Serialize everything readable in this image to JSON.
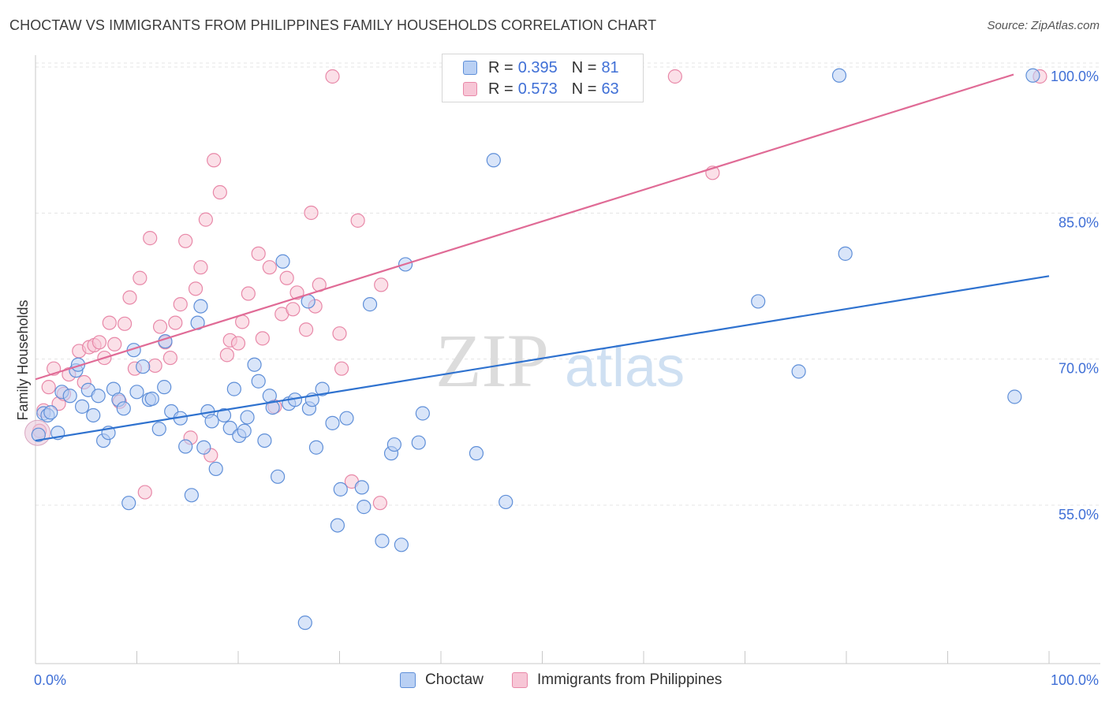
{
  "header": {
    "title": "CHOCTAW VS IMMIGRANTS FROM PHILIPPINES FAMILY HOUSEHOLDS CORRELATION CHART",
    "source": "Source: ZipAtlas.com"
  },
  "colors": {
    "choctaw_fill": "#b9d0f4",
    "choctaw_stroke": "#5f8fd8",
    "choctaw_line": "#2f72cf",
    "phil_fill": "#f7c6d6",
    "phil_stroke": "#e888a8",
    "phil_line": "#e06b96",
    "axis_label": "#3f6fd6",
    "grid": "#e4e4e4"
  },
  "legend": {
    "rows": [
      {
        "r_label": "R =",
        "r_value": "0.395",
        "n_label": "N =",
        "n_value": "81"
      },
      {
        "r_label": "R =",
        "r_value": "0.573",
        "n_label": "N =",
        "n_value": "63"
      }
    ],
    "bottom": [
      "Choctaw",
      "Immigrants from Philippines"
    ]
  },
  "watermark": {
    "zip": "ZIP",
    "atlas": "atlas"
  },
  "chart_data": {
    "type": "scatter",
    "title": "CHOCTAW VS IMMIGRANTS FROM PHILIPPINES FAMILY HOUSEHOLDS CORRELATION CHART",
    "xlabel": "",
    "ylabel": "Family Households",
    "xlim": [
      0,
      100
    ],
    "ylim": [
      41.5,
      102.0
    ],
    "x_tick_labels": [
      "0.0%",
      "100.0%"
    ],
    "y_ticks": [
      55.0,
      70.0,
      85.0,
      100.0
    ],
    "y_tick_labels": [
      "55.0%",
      "70.0%",
      "85.0%",
      "100.0%"
    ],
    "series": [
      {
        "name": "Choctaw",
        "r": 0.395,
        "n": 81,
        "trend": {
          "x": [
            0,
            100
          ],
          "y": [
            62.6,
            79.5
          ]
        },
        "points": [
          {
            "x": 0.8,
            "y": 65.4
          },
          {
            "x": 1.2,
            "y": 65.2
          },
          {
            "x": 1.5,
            "y": 65.5
          },
          {
            "x": 2.2,
            "y": 63.4
          },
          {
            "x": 2.6,
            "y": 67.6
          },
          {
            "x": 3.4,
            "y": 67.2
          },
          {
            "x": 4.0,
            "y": 69.8
          },
          {
            "x": 4.2,
            "y": 70.4
          },
          {
            "x": 4.6,
            "y": 66.1
          },
          {
            "x": 5.2,
            "y": 67.8
          },
          {
            "x": 5.7,
            "y": 65.2
          },
          {
            "x": 6.2,
            "y": 67.2
          },
          {
            "x": 6.7,
            "y": 62.6
          },
          {
            "x": 7.2,
            "y": 63.4
          },
          {
            "x": 7.7,
            "y": 67.9
          },
          {
            "x": 8.2,
            "y": 66.8
          },
          {
            "x": 8.7,
            "y": 65.9
          },
          {
            "x": 9.2,
            "y": 56.2
          },
          {
            "x": 9.7,
            "y": 71.9
          },
          {
            "x": 10.0,
            "y": 67.6
          },
          {
            "x": 10.6,
            "y": 70.2
          },
          {
            "x": 11.2,
            "y": 66.8
          },
          {
            "x": 11.5,
            "y": 66.9
          },
          {
            "x": 12.2,
            "y": 63.8
          },
          {
            "x": 12.7,
            "y": 68.1
          },
          {
            "x": 12.8,
            "y": 72.8
          },
          {
            "x": 13.4,
            "y": 65.6
          },
          {
            "x": 14.3,
            "y": 64.9
          },
          {
            "x": 14.8,
            "y": 62.0
          },
          {
            "x": 15.4,
            "y": 57.0
          },
          {
            "x": 16.0,
            "y": 74.7
          },
          {
            "x": 16.3,
            "y": 76.4
          },
          {
            "x": 16.6,
            "y": 61.9
          },
          {
            "x": 17.0,
            "y": 65.6
          },
          {
            "x": 17.4,
            "y": 64.6
          },
          {
            "x": 17.8,
            "y": 59.7
          },
          {
            "x": 18.6,
            "y": 65.2
          },
          {
            "x": 19.2,
            "y": 63.9
          },
          {
            "x": 19.6,
            "y": 67.9
          },
          {
            "x": 20.1,
            "y": 63.1
          },
          {
            "x": 20.6,
            "y": 63.6
          },
          {
            "x": 20.9,
            "y": 65.0
          },
          {
            "x": 21.6,
            "y": 70.4
          },
          {
            "x": 22.0,
            "y": 68.7
          },
          {
            "x": 22.6,
            "y": 62.6
          },
          {
            "x": 23.1,
            "y": 67.2
          },
          {
            "x": 23.4,
            "y": 66.0
          },
          {
            "x": 23.9,
            "y": 58.9
          },
          {
            "x": 24.4,
            "y": 81.0
          },
          {
            "x": 25.0,
            "y": 66.4
          },
          {
            "x": 25.6,
            "y": 66.8
          },
          {
            "x": 26.6,
            "y": 43.9
          },
          {
            "x": 26.9,
            "y": 76.9
          },
          {
            "x": 27.0,
            "y": 65.9
          },
          {
            "x": 27.3,
            "y": 66.8
          },
          {
            "x": 27.7,
            "y": 61.9
          },
          {
            "x": 28.3,
            "y": 67.9
          },
          {
            "x": 29.3,
            "y": 64.4
          },
          {
            "x": 29.8,
            "y": 53.9
          },
          {
            "x": 30.1,
            "y": 57.6
          },
          {
            "x": 30.7,
            "y": 64.9
          },
          {
            "x": 32.2,
            "y": 57.8
          },
          {
            "x": 32.4,
            "y": 55.8
          },
          {
            "x": 33.0,
            "y": 76.6
          },
          {
            "x": 34.2,
            "y": 52.3
          },
          {
            "x": 35.1,
            "y": 61.3
          },
          {
            "x": 35.4,
            "y": 62.2
          },
          {
            "x": 36.1,
            "y": 51.9
          },
          {
            "x": 36.5,
            "y": 80.7
          },
          {
            "x": 37.8,
            "y": 62.4
          },
          {
            "x": 38.2,
            "y": 65.4
          },
          {
            "x": 43.5,
            "y": 61.3
          },
          {
            "x": 45.2,
            "y": 91.4
          },
          {
            "x": 46.4,
            "y": 56.3
          },
          {
            "x": 71.3,
            "y": 76.9
          },
          {
            "x": 75.3,
            "y": 69.7
          },
          {
            "x": 79.3,
            "y": 100.1
          },
          {
            "x": 79.9,
            "y": 81.8
          },
          {
            "x": 96.6,
            "y": 67.1
          },
          {
            "x": 98.4,
            "y": 100.1
          },
          {
            "x": 0.3,
            "y": 63.2
          }
        ]
      },
      {
        "name": "Immigrants from Philippines",
        "r": 0.573,
        "n": 63,
        "trend": {
          "x": [
            0,
            96.5
          ],
          "y": [
            68.9,
            100.2
          ]
        },
        "points": [
          {
            "x": 0.4,
            "y": 63.6
          },
          {
            "x": 0.8,
            "y": 65.7
          },
          {
            "x": 1.3,
            "y": 68.1
          },
          {
            "x": 1.8,
            "y": 70.0
          },
          {
            "x": 2.3,
            "y": 66.4
          },
          {
            "x": 2.8,
            "y": 67.4
          },
          {
            "x": 3.3,
            "y": 69.4
          },
          {
            "x": 4.3,
            "y": 71.8
          },
          {
            "x": 4.8,
            "y": 68.6
          },
          {
            "x": 5.3,
            "y": 72.2
          },
          {
            "x": 5.8,
            "y": 72.4
          },
          {
            "x": 6.3,
            "y": 72.7
          },
          {
            "x": 6.8,
            "y": 71.1
          },
          {
            "x": 7.3,
            "y": 74.7
          },
          {
            "x": 7.8,
            "y": 72.5
          },
          {
            "x": 8.3,
            "y": 66.6
          },
          {
            "x": 8.8,
            "y": 74.6
          },
          {
            "x": 9.3,
            "y": 77.3
          },
          {
            "x": 9.8,
            "y": 70.0
          },
          {
            "x": 10.3,
            "y": 79.3
          },
          {
            "x": 10.8,
            "y": 57.3
          },
          {
            "x": 11.3,
            "y": 83.4
          },
          {
            "x": 11.8,
            "y": 70.3
          },
          {
            "x": 12.3,
            "y": 74.3
          },
          {
            "x": 12.8,
            "y": 72.7
          },
          {
            "x": 13.3,
            "y": 71.1
          },
          {
            "x": 13.8,
            "y": 74.7
          },
          {
            "x": 14.3,
            "y": 76.6
          },
          {
            "x": 14.8,
            "y": 83.1
          },
          {
            "x": 15.3,
            "y": 62.9
          },
          {
            "x": 15.8,
            "y": 78.2
          },
          {
            "x": 16.3,
            "y": 80.4
          },
          {
            "x": 16.8,
            "y": 85.3
          },
          {
            "x": 17.3,
            "y": 61.1
          },
          {
            "x": 17.6,
            "y": 91.4
          },
          {
            "x": 18.2,
            "y": 88.1
          },
          {
            "x": 18.9,
            "y": 71.4
          },
          {
            "x": 19.2,
            "y": 72.9
          },
          {
            "x": 20.0,
            "y": 72.6
          },
          {
            "x": 20.4,
            "y": 74.8
          },
          {
            "x": 21.0,
            "y": 77.7
          },
          {
            "x": 22.0,
            "y": 81.8
          },
          {
            "x": 22.4,
            "y": 73.1
          },
          {
            "x": 23.1,
            "y": 80.4
          },
          {
            "x": 23.6,
            "y": 66.1
          },
          {
            "x": 24.3,
            "y": 75.6
          },
          {
            "x": 24.8,
            "y": 79.3
          },
          {
            "x": 25.4,
            "y": 76.1
          },
          {
            "x": 25.8,
            "y": 77.8
          },
          {
            "x": 26.7,
            "y": 74.0
          },
          {
            "x": 27.2,
            "y": 86.0
          },
          {
            "x": 27.6,
            "y": 76.4
          },
          {
            "x": 28.0,
            "y": 78.6
          },
          {
            "x": 29.3,
            "y": 100.0
          },
          {
            "x": 30.0,
            "y": 73.6
          },
          {
            "x": 30.2,
            "y": 70.0
          },
          {
            "x": 31.2,
            "y": 58.4
          },
          {
            "x": 31.8,
            "y": 85.2
          },
          {
            "x": 34.0,
            "y": 56.2
          },
          {
            "x": 34.1,
            "y": 78.6
          },
          {
            "x": 63.1,
            "y": 100.0
          },
          {
            "x": 66.8,
            "y": 90.1
          },
          {
            "x": 99.1,
            "y": 100.0
          }
        ]
      }
    ]
  }
}
